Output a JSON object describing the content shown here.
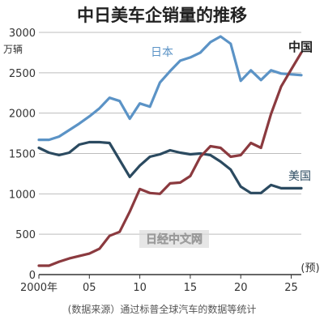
{
  "chart_data": {
    "type": "line",
    "title": "中日美车企销量的推移",
    "ylabel": "万辆",
    "ylim": [
      0,
      3000
    ],
    "xlim": [
      2000,
      2026
    ],
    "yticks": [
      0,
      500,
      1000,
      1500,
      2000,
      2500,
      3000
    ],
    "xticks": [
      {
        "value": 2000,
        "label": "2000年"
      },
      {
        "value": 2005,
        "label": "05"
      },
      {
        "value": 2010,
        "label": "10"
      },
      {
        "value": 2015,
        "label": "15"
      },
      {
        "value": 2020,
        "label": "20"
      },
      {
        "value": 2025,
        "label": "25"
      }
    ],
    "forecast_label": "(预)",
    "grid": "horizontal",
    "series": [
      {
        "name": "日本",
        "color": "#5b93c6",
        "x": [
          2000,
          2001,
          2002,
          2003,
          2004,
          2005,
          2006,
          2007,
          2008,
          2009,
          2010,
          2011,
          2012,
          2013,
          2014,
          2015,
          2016,
          2017,
          2018,
          2019,
          2020,
          2021,
          2022,
          2023,
          2024,
          2025,
          2026
        ],
        "y": [
          1670,
          1670,
          1710,
          1790,
          1870,
          1960,
          2060,
          2190,
          2150,
          1930,
          2120,
          2080,
          2380,
          2520,
          2650,
          2690,
          2750,
          2880,
          2950,
          2860,
          2400,
          2530,
          2410,
          2530,
          2490,
          2480,
          2470
        ]
      },
      {
        "name": "美国",
        "color": "#2b4a60",
        "x": [
          2000,
          2001,
          2002,
          2003,
          2004,
          2005,
          2006,
          2007,
          2008,
          2009,
          2010,
          2011,
          2012,
          2013,
          2014,
          2015,
          2016,
          2017,
          2018,
          2019,
          2020,
          2021,
          2022,
          2023,
          2024,
          2025,
          2026
        ],
        "y": [
          1570,
          1510,
          1480,
          1510,
          1610,
          1640,
          1640,
          1630,
          1420,
          1210,
          1350,
          1460,
          1490,
          1540,
          1510,
          1490,
          1500,
          1480,
          1400,
          1300,
          1090,
          1010,
          1010,
          1110,
          1070,
          1070,
          1070
        ]
      },
      {
        "name": "中国",
        "color": "#8b3a3f",
        "x": [
          2000,
          2001,
          2002,
          2003,
          2004,
          2005,
          2006,
          2007,
          2008,
          2009,
          2010,
          2011,
          2012,
          2013,
          2014,
          2015,
          2016,
          2017,
          2018,
          2019,
          2020,
          2021,
          2022,
          2023,
          2024,
          2025,
          2026
        ],
        "y": [
          110,
          110,
          160,
          200,
          230,
          260,
          320,
          480,
          530,
          780,
          1060,
          1010,
          1000,
          1130,
          1140,
          1220,
          1460,
          1590,
          1570,
          1460,
          1480,
          1630,
          1570,
          1990,
          2330,
          2540,
          2750
        ]
      }
    ]
  },
  "source_note": "(数据来源）通过标普全球汽车的数据等统计",
  "watermark": "日经中文网"
}
